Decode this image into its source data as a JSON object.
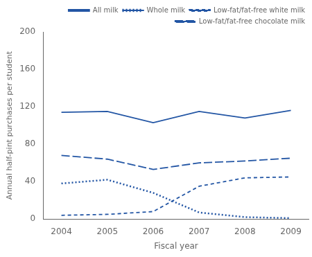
{
  "chart_data": {
    "type": "line",
    "xlabel": "Fiscal year",
    "ylabel": "Annual half-pint purchases per student",
    "x": [
      2004,
      2005,
      2006,
      2007,
      2008,
      2009
    ],
    "series": [
      {
        "name": "All milk",
        "color": "#2255a4",
        "line_style": "solid",
        "values": [
          114,
          115,
          103,
          115,
          108,
          116
        ]
      },
      {
        "name": "Whole milk",
        "color": "#2255a4",
        "line_style": "dotted",
        "values": [
          38,
          42,
          28,
          7,
          2,
          1
        ]
      },
      {
        "name": "Low-fat/fat-free white milk",
        "color": "#2255a4",
        "line_style": "dashed",
        "values": [
          4,
          5,
          8,
          35,
          44,
          45
        ]
      },
      {
        "name": "Low-fat/fat-free chocolate milk",
        "color": "#2255a4",
        "line_style": "longdash",
        "values": [
          68,
          64,
          53,
          60,
          62,
          65
        ]
      }
    ],
    "xlim": [
      2003.6,
      2009.4
    ],
    "xticks": [
      2004,
      2005,
      2006,
      2007,
      2008,
      2009
    ],
    "ylim": [
      0,
      200
    ],
    "yticks": [
      0,
      40,
      80,
      120,
      160,
      200
    ],
    "grid": false,
    "legend": "upper right"
  }
}
